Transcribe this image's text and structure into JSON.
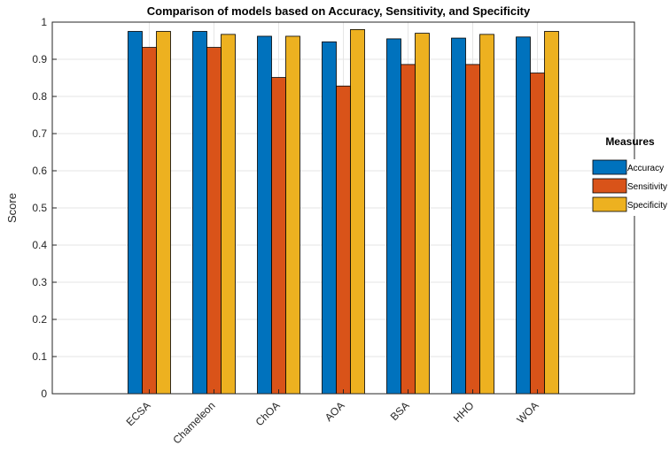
{
  "chart_data": {
    "type": "bar",
    "title": "Comparison of models based on Accuracy, Sensitivity, and Specificity",
    "xlabel": "",
    "ylabel": "Score",
    "ylim": [
      0,
      1
    ],
    "yticks": [
      0,
      0.1,
      0.2,
      0.3,
      0.4,
      0.5,
      0.6,
      0.7,
      0.8,
      0.9,
      1
    ],
    "ytick_labels": [
      "0",
      "0.1",
      "0.2",
      "0.3",
      "0.4",
      "0.5",
      "0.6",
      "0.7",
      "0.8",
      "0.9",
      "1"
    ],
    "categories": [
      "ECSA",
      "Chameleon",
      "ChOA",
      "AOA",
      "BSA",
      "HHO",
      "WOA"
    ],
    "series": [
      {
        "name": "Accuracy",
        "color": "#0072BD",
        "values": [
          0.975,
          0.975,
          0.962,
          0.947,
          0.955,
          0.957,
          0.96
        ]
      },
      {
        "name": "Sensitivity",
        "color": "#D95319",
        "values": [
          0.932,
          0.932,
          0.851,
          0.828,
          0.886,
          0.886,
          0.863
        ]
      },
      {
        "name": "Specificity",
        "color": "#EDB120",
        "values": [
          0.975,
          0.967,
          0.962,
          0.98,
          0.97,
          0.967,
          0.975
        ]
      }
    ],
    "grid": true,
    "legend": {
      "title": "Measures",
      "position": "right"
    }
  }
}
